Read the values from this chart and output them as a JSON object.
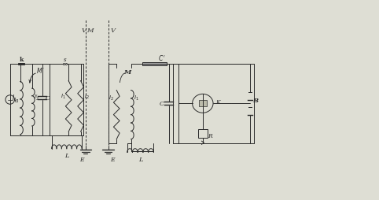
{
  "bg_color": "#deded4",
  "line_color": "#2a2a2a",
  "fig_width": 4.82,
  "fig_height": 2.55,
  "dpi": 100,
  "xlim": [
    0,
    100
  ],
  "ylim": [
    0,
    53
  ]
}
